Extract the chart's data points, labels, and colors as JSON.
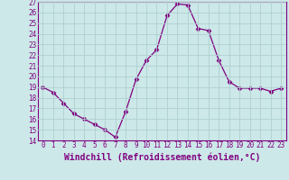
{
  "x": [
    0,
    1,
    2,
    3,
    4,
    5,
    6,
    7,
    8,
    9,
    10,
    11,
    12,
    13,
    14,
    15,
    16,
    17,
    18,
    19,
    20,
    21,
    22,
    23
  ],
  "y": [
    19,
    18.5,
    17.5,
    16.5,
    16,
    15.5,
    15,
    14.3,
    16.7,
    19.7,
    21.5,
    22.5,
    25.7,
    26.8,
    26.7,
    24.5,
    24.3,
    21.5,
    19.5,
    18.9,
    18.9,
    18.9,
    18.6,
    18.9
  ],
  "line_color": "#800080",
  "marker": "D",
  "marker_size": 2.5,
  "bg_color": "#cce8e8",
  "grid_color": "#b0d0d0",
  "xlabel": "Windchill (Refroidissement éolien,°C)",
  "ylim": [
    14,
    27
  ],
  "xlim": [
    -0.5,
    23.5
  ],
  "yticks": [
    14,
    15,
    16,
    17,
    18,
    19,
    20,
    21,
    22,
    23,
    24,
    25,
    26,
    27
  ],
  "xticks": [
    0,
    1,
    2,
    3,
    4,
    5,
    6,
    7,
    8,
    9,
    10,
    11,
    12,
    13,
    14,
    15,
    16,
    17,
    18,
    19,
    20,
    21,
    22,
    23
  ],
  "tick_label_size": 5.5,
  "xlabel_size": 7.0
}
